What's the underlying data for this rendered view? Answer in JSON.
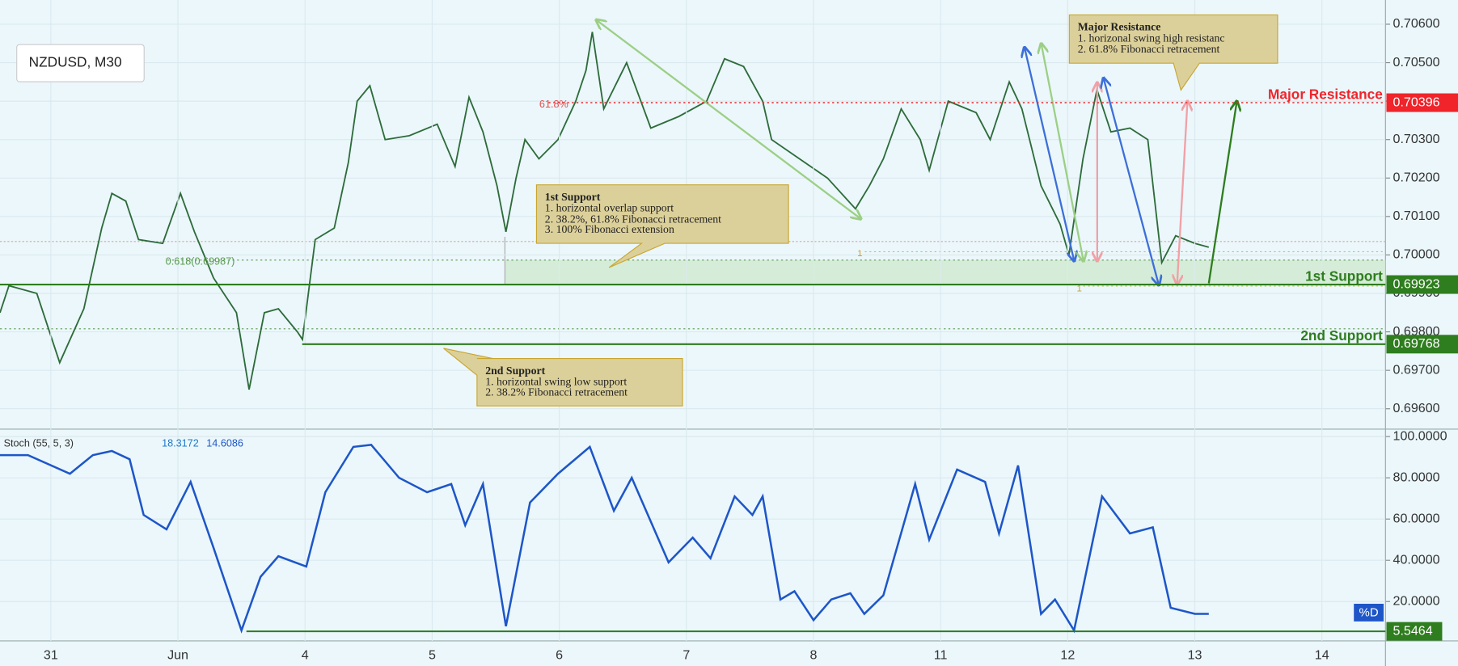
{
  "chart_data": [
    {
      "type": "line",
      "title": "NZDUSD, M30",
      "color": "#2e6b3a",
      "x": [
        -0.4,
        -0.33,
        -0.11,
        0.07,
        0.26,
        0.4,
        0.48,
        0.59,
        0.69,
        0.88,
        1.02,
        1.13,
        1.28,
        1.46,
        1.56,
        1.68,
        1.79,
        1.94,
        1.98,
        2.08,
        2.23,
        2.34,
        2.41,
        2.51,
        2.63,
        2.82,
        3.04,
        3.18,
        3.29,
        3.4,
        3.51,
        3.58,
        3.66,
        3.73,
        3.84,
        3.99,
        4.13,
        4.21,
        4.26,
        4.35,
        4.53,
        4.72,
        4.94,
        5.16,
        5.3,
        5.45,
        5.6,
        5.67,
        5.89,
        6.11,
        6.33,
        6.44,
        6.55,
        6.69,
        6.84,
        6.91,
        7.06,
        7.28,
        7.39,
        7.54,
        7.64,
        7.79,
        7.94,
        8.01,
        8.12,
        8.23,
        8.34,
        8.49,
        8.63,
        8.74,
        8.85,
        9.0,
        9.11
      ],
      "values": [
        0.6985,
        0.6992,
        0.699,
        0.6972,
        0.6986,
        0.7007,
        0.7016,
        0.7014,
        0.7004,
        0.7003,
        0.7016,
        0.7006,
        0.6994,
        0.6985,
        0.6965,
        0.6985,
        0.6986,
        0.698,
        0.6978,
        0.7004,
        0.7007,
        0.7024,
        0.704,
        0.7044,
        0.703,
        0.7031,
        0.7034,
        0.7023,
        0.7041,
        0.7032,
        0.7018,
        0.7006,
        0.702,
        0.703,
        0.7025,
        0.703,
        0.704,
        0.7048,
        0.7058,
        0.7038,
        0.705,
        0.7033,
        0.7036,
        0.704,
        0.7051,
        0.7049,
        0.704,
        0.703,
        0.7025,
        0.702,
        0.7012,
        0.7018,
        0.7025,
        0.7038,
        0.703,
        0.7022,
        0.704,
        0.7037,
        0.703,
        0.7045,
        0.7038,
        0.7018,
        0.7008,
        0.7,
        0.7025,
        0.7043,
        0.7032,
        0.7033,
        0.703,
        0.6998,
        0.7005,
        0.7003,
        0.7002
      ],
      "xlim": [
        -0.4,
        10.5
      ],
      "ylim": [
        0.69547,
        0.70663
      ],
      "yticks": [
        {
          "value": 0.696,
          "label": "0.69600"
        },
        {
          "value": 0.697,
          "label": "0.69700"
        },
        {
          "value": 0.698,
          "label": "0.69800"
        },
        {
          "value": 0.699,
          "label": "0.69900"
        },
        {
          "value": 0.7,
          "label": "0.70000"
        },
        {
          "value": 0.701,
          "label": "0.70100"
        },
        {
          "value": 0.702,
          "label": "0.70200"
        },
        {
          "value": 0.703,
          "label": "0.70300"
        },
        {
          "value": 0.704,
          "label": "0.70400"
        },
        {
          "value": 0.705,
          "label": "0.70500"
        },
        {
          "value": 0.706,
          "label": "0.70600"
        }
      ],
      "levels": [
        {
          "label": "Major Resistance",
          "value": 0.70396,
          "color": "#f0242a"
        },
        {
          "label": "1st Support",
          "value": 0.69923,
          "color": "#2e7d1e"
        },
        {
          "label": "2nd Support",
          "value": 0.69768,
          "color": "#2e7d1e"
        }
      ],
      "fib_labels": [
        "61.8%",
        "0.618(0.69987)",
        "1",
        "1"
      ],
      "annotations": [
        {
          "title": "Major Resistance",
          "lines": [
            "1. horizonal swing high resistanc",
            "2. 61.8% Fibonacci retracement"
          ]
        },
        {
          "title": "1st Support",
          "lines": [
            "1. horizontal overlap support",
            "2. 38.2%, 61.8% Fibonacci retracement",
            "3. 100% Fibonacci extension"
          ]
        },
        {
          "title": "2nd Support",
          "lines": [
            "1. horizontal swing low support",
            "2. 38.2% Fibonacci retracement"
          ]
        }
      ]
    },
    {
      "type": "line",
      "title": "Stoch (55, 5, 3)",
      "readouts": [
        18.3172,
        14.6086
      ],
      "legend": "%D",
      "color": "#1e56c8",
      "x": [
        -0.4,
        -0.18,
        0.15,
        0.33,
        0.48,
        0.62,
        0.73,
        0.91,
        1.1,
        1.28,
        1.5,
        1.65,
        1.79,
        2.01,
        2.16,
        2.38,
        2.52,
        2.74,
        2.96,
        3.15,
        3.26,
        3.4,
        3.58,
        3.77,
        3.99,
        4.24,
        4.43,
        4.57,
        4.86,
        5.05,
        5.19,
        5.38,
        5.52,
        5.6,
        5.74,
        5.85,
        6.0,
        6.14,
        6.29,
        6.4,
        6.55,
        6.8,
        6.91,
        7.13,
        7.35,
        7.46,
        7.61,
        7.79,
        7.9,
        8.05,
        8.27,
        8.49,
        8.67,
        8.81,
        9.0,
        9.11
      ],
      "values": [
        91,
        91,
        82,
        91,
        93,
        89,
        62,
        55,
        78,
        46,
        6,
        32,
        42,
        37,
        73,
        95,
        96,
        80,
        73,
        77,
        57,
        77,
        8,
        68,
        82,
        95,
        64,
        80,
        39,
        51,
        41,
        71,
        62,
        71,
        21,
        25,
        11,
        21,
        24,
        14,
        23,
        77,
        50,
        84,
        78,
        53,
        86,
        14,
        21,
        6,
        71,
        53,
        56,
        17,
        14,
        14
      ],
      "level": {
        "value": 5.5464,
        "color": "#2e7d1e"
      },
      "xlim": [
        -0.4,
        10.5
      ],
      "ylim": [
        0.9,
        103.6
      ],
      "yticks": [
        {
          "value": 20,
          "label": "20.0000"
        },
        {
          "value": 40,
          "label": "40.0000"
        },
        {
          "value": 60,
          "label": "60.0000"
        },
        {
          "value": 80,
          "label": "80.0000"
        },
        {
          "value": 100,
          "label": "100.0000"
        }
      ],
      "xticks": [
        {
          "value": 0,
          "label": "31"
        },
        {
          "value": 1,
          "label": "Jun"
        },
        {
          "value": 2,
          "label": "4"
        },
        {
          "value": 3,
          "label": "5"
        },
        {
          "value": 4,
          "label": "6"
        },
        {
          "value": 5,
          "label": "7"
        },
        {
          "value": 6,
          "label": "8"
        },
        {
          "value": 7,
          "label": "11"
        },
        {
          "value": 8,
          "label": "12"
        },
        {
          "value": 9,
          "label": "13"
        },
        {
          "value": 10,
          "label": "14"
        }
      ]
    }
  ]
}
